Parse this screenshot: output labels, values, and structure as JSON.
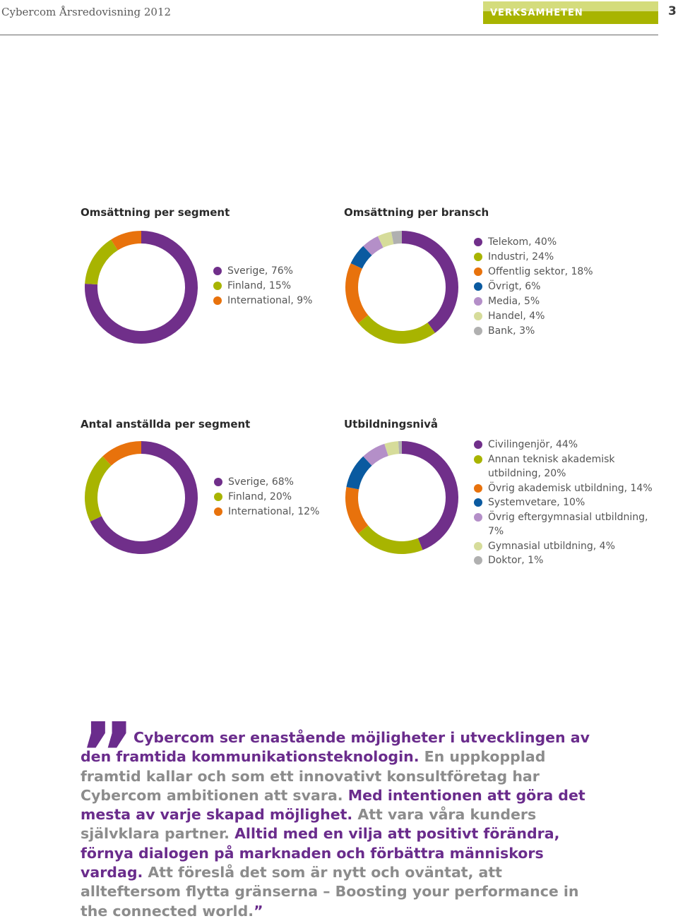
{
  "header": {
    "title": "Cybercom Årsredovisning 2012",
    "section": "VERKSAMHETEN",
    "page_number": "3",
    "band_colors": [
      "#d4dc7c",
      "#a8b400"
    ]
  },
  "chart_data": [
    {
      "type": "pie",
      "variant": "donut",
      "title": "Omsättning per segment",
      "categories": [
        "Sverige, 76%",
        "Finland, 15%",
        "International, 9%"
      ],
      "values": [
        76,
        15,
        9
      ],
      "colors": [
        "#702f8a",
        "#a8b400",
        "#e8720c"
      ]
    },
    {
      "type": "pie",
      "variant": "donut",
      "title": "Omsättning per bransch",
      "categories": [
        "Telekom, 40%",
        "Industri, 24%",
        "Offentlig sektor, 18%",
        "Övrigt, 6%",
        "Media, 5%",
        "Handel, 4%",
        "Bank, 3%"
      ],
      "values": [
        40,
        24,
        18,
        6,
        5,
        4,
        3
      ],
      "colors": [
        "#702f8a",
        "#a8b400",
        "#e8720c",
        "#0a5aa0",
        "#b48fc8",
        "#d6dc9a",
        "#b0b0b0"
      ]
    },
    {
      "type": "pie",
      "variant": "donut",
      "title": "Antal anställda per segment",
      "categories": [
        "Sverige, 68%",
        "Finland, 20%",
        "International, 12%"
      ],
      "values": [
        68,
        20,
        12
      ],
      "colors": [
        "#702f8a",
        "#a8b400",
        "#e8720c"
      ]
    },
    {
      "type": "pie",
      "variant": "donut",
      "title": "Utbildningsnivå",
      "categories": [
        "Civilingenjör, 44%",
        "Annan teknisk akademisk utbildning, 20%",
        "Övrig akademisk utbildning, 14%",
        "Systemvetare, 10%",
        "Övrig eftergymnasial utbildning, 7%",
        "Gymnasial utbildning, 4%",
        "Doktor, 1%"
      ],
      "values": [
        44,
        20,
        14,
        10,
        7,
        4,
        1
      ],
      "colors": [
        "#702f8a",
        "#a8b400",
        "#e8720c",
        "#0a5aa0",
        "#b48fc8",
        "#d6dc9a",
        "#b0b0b0"
      ]
    }
  ],
  "quote": {
    "part1": "Cybercom ser enastående möjligheter i utvecklingen av den framtida kommunikationsteknologin.",
    "part2": "En uppkopplad framtid kallar och som ett innovativt konsultföretag har Cybercom ambitionen att svara.",
    "part3": "Med intentionen att göra det mesta av varje skapad möjlighet.",
    "part4": "Att vara våra kunders självklara partner.",
    "part5": "Alltid med en vilja att positivt förändra, förnya dialogen på marknaden och förbättra människors vardag.",
    "part6": "Att föreslå det som är nytt och oväntat, att allteftersom flytta gränserna – Boosting your performance in the connected world.",
    "open_mark": "”",
    "close_mark": "”"
  }
}
